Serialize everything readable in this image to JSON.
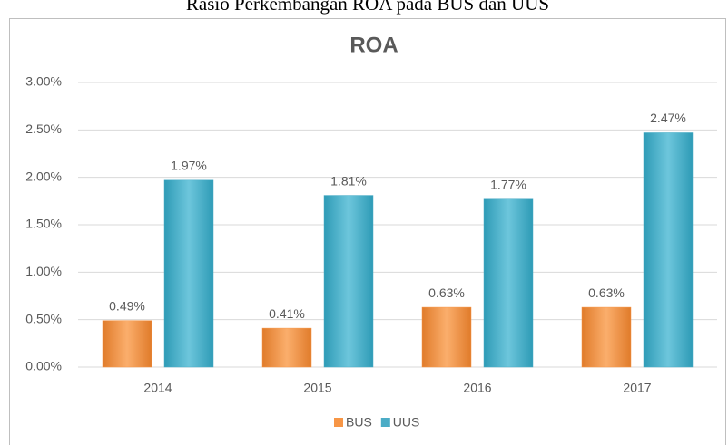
{
  "chart_data": {
    "type": "bar",
    "caption": "Rasio Perkembangan ROA pada BUS dan UUS",
    "title": "ROA",
    "categories": [
      "2014",
      "2015",
      "2016",
      "2017"
    ],
    "series": [
      {
        "name": "BUS",
        "color": "#f79646",
        "values": [
          0.49,
          0.41,
          0.63,
          0.63
        ],
        "value_labels": [
          "0.49%",
          "0.41%",
          "0.63%",
          "0.63%"
        ]
      },
      {
        "name": "UUS",
        "color": "#4bacc6",
        "values": [
          1.97,
          1.81,
          1.77,
          2.47
        ],
        "value_labels": [
          "1.97%",
          "1.81%",
          "1.77%",
          "2.47%"
        ]
      }
    ],
    "ylim": [
      0,
      3
    ],
    "yticks": [
      {
        "value": 0,
        "label": "0.00%"
      },
      {
        "value": 0.5,
        "label": "0.50%"
      },
      {
        "value": 1,
        "label": "1.00%"
      },
      {
        "value": 1.5,
        "label": "1.50%"
      },
      {
        "value": 2,
        "label": "2.00%"
      },
      {
        "value": 2.5,
        "label": "2.50%"
      },
      {
        "value": 3,
        "label": "3.00%"
      }
    ],
    "grid": true,
    "legend": "bottom"
  }
}
